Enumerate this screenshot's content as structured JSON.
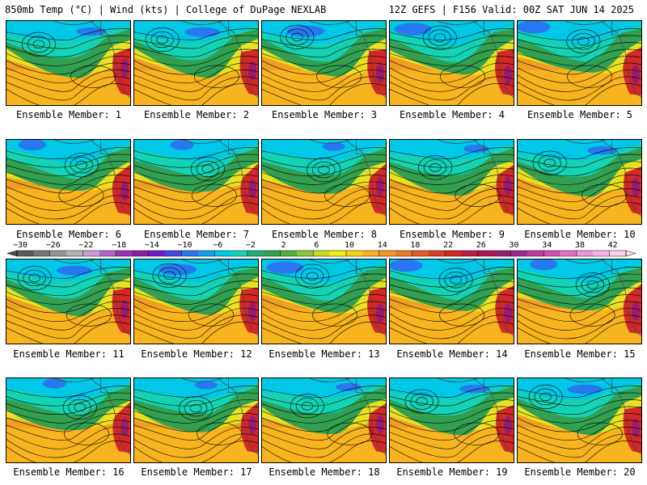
{
  "header": {
    "left": "850mb Temp (°C) | Wind (kts) | College of DuPage NEXLAB",
    "right": "12Z GEFS | F156 Valid: 00Z SAT JUN 14 2025"
  },
  "members": [
    {
      "label": "Ensemble Member: 1"
    },
    {
      "label": "Ensemble Member: 2"
    },
    {
      "label": "Ensemble Member: 3"
    },
    {
      "label": "Ensemble Member: 4"
    },
    {
      "label": "Ensemble Member: 5"
    },
    {
      "label": "Ensemble Member: 6"
    },
    {
      "label": "Ensemble Member: 7"
    },
    {
      "label": "Ensemble Member: 8"
    },
    {
      "label": "Ensemble Member: 9"
    },
    {
      "label": "Ensemble Member: 10"
    },
    {
      "label": "Ensemble Member: 11"
    },
    {
      "label": "Ensemble Member: 12"
    },
    {
      "label": "Ensemble Member: 13"
    },
    {
      "label": "Ensemble Member: 14"
    },
    {
      "label": "Ensemble Member: 15"
    },
    {
      "label": "Ensemble Member: 16"
    },
    {
      "label": "Ensemble Member: 17"
    },
    {
      "label": "Ensemble Member: 18"
    },
    {
      "label": "Ensemble Member: 19"
    },
    {
      "label": "Ensemble Member: 20"
    }
  ],
  "colorbar": {
    "tick_labels": [
      "−30",
      "−26",
      "−22",
      "−18",
      "−14",
      "−10",
      "−6",
      "−2",
      "2",
      "6",
      "10",
      "14",
      "18",
      "22",
      "26",
      "30",
      "34",
      "38",
      "42"
    ],
    "colors": [
      "#5a5a5a",
      "#787878",
      "#969696",
      "#b4b4b4",
      "#c8a0d8",
      "#b464c8",
      "#a030b4",
      "#8c1ea0",
      "#6e1ecc",
      "#4646e6",
      "#2878f0",
      "#14a0f0",
      "#00c8e6",
      "#14d2b4",
      "#1eb478",
      "#32a050",
      "#50b43c",
      "#8cc83c",
      "#c8dc28",
      "#f0f014",
      "#f8d214",
      "#f8b41e",
      "#f89628",
      "#f07828",
      "#e65a28",
      "#dc3c28",
      "#d22828",
      "#be1e3c",
      "#aa1450",
      "#961e6e",
      "#a0288c",
      "#be3ca0",
      "#d250b4",
      "#e66ec8",
      "#f096dc",
      "#f5b4e6",
      "#fad2f0"
    ]
  }
}
